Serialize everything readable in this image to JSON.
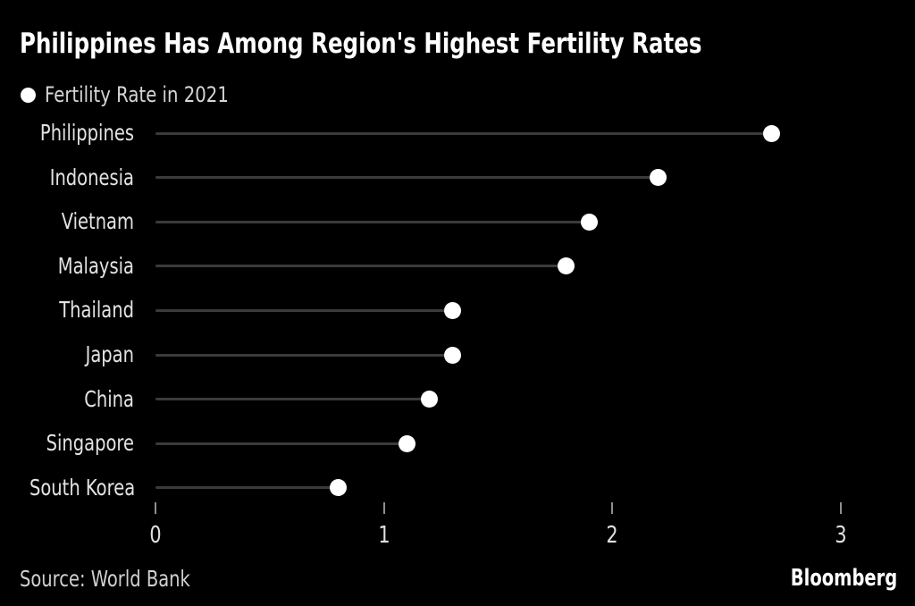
{
  "header": {
    "title": "Philippines Has Among Region's Highest Fertility Rates",
    "legend": {
      "marker": "dot-icon",
      "label": "Fertility Rate in 2021"
    }
  },
  "chart_data": {
    "type": "bar",
    "variant": "lollipop",
    "orientation": "horizontal",
    "title": "Philippines Has Among Region's Highest Fertility Rates",
    "series_name": "Fertility Rate in 2021",
    "categories": [
      "Philippines",
      "Indonesia",
      "Vietnam",
      "Malaysia",
      "Thailand",
      "Japan",
      "China",
      "Singapore",
      "South Korea"
    ],
    "values": [
      2.7,
      2.2,
      1.9,
      1.8,
      1.3,
      1.3,
      1.2,
      1.1,
      0.8
    ],
    "xlabel": "",
    "ylabel": "",
    "xlim": [
      0,
      3.33
    ],
    "x_ticks": [
      0,
      1,
      2,
      3
    ],
    "grid": false,
    "legend_position": "top-left",
    "colors": {
      "background": "#000000",
      "dot": "#ffffff",
      "stem": "#3b3b3b",
      "title": "#ffffff",
      "label": "#e3e3e3",
      "tick": "#8f8f8f",
      "tick_label": "#e0e0e0",
      "source": "#d0d0d0"
    }
  },
  "footer": {
    "source": "Source: World Bank",
    "brand": "Bloomberg"
  }
}
